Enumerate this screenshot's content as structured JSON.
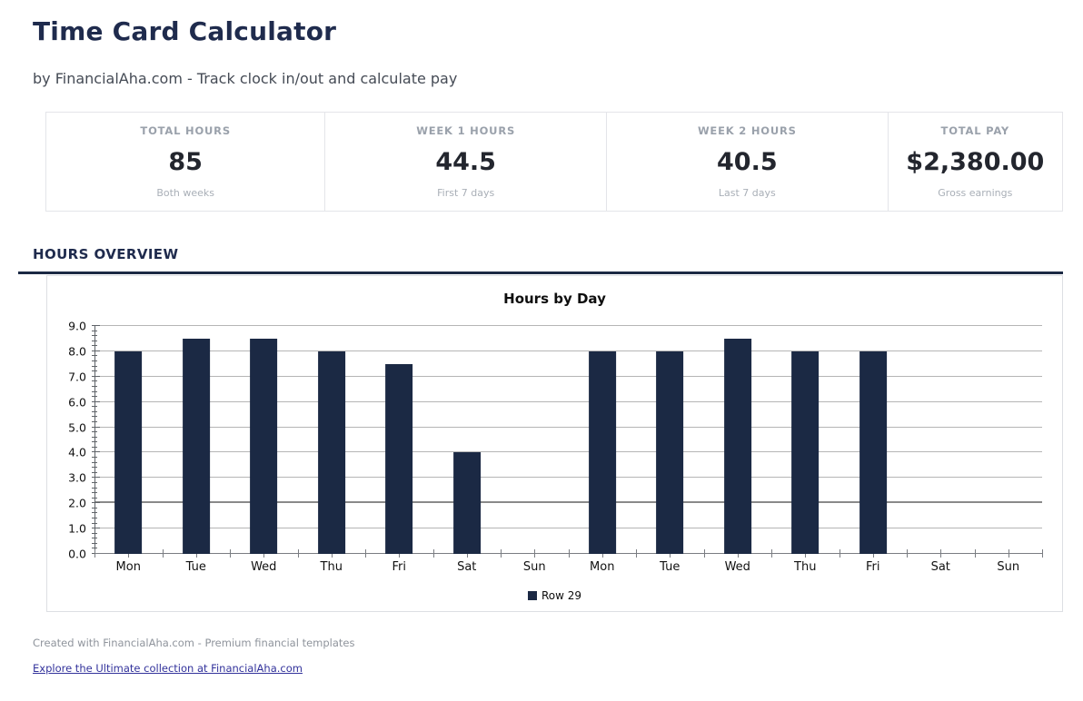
{
  "page": {
    "title": "Time Card Calculator",
    "subtitle": "by FinancialAha.com - Track clock in/out and calculate pay"
  },
  "stats": {
    "cards": [
      {
        "label": "TOTAL HOURS",
        "value": "85",
        "sub": "Both weeks"
      },
      {
        "label": "WEEK 1 HOURS",
        "value": "44.5",
        "sub": "First 7 days"
      },
      {
        "label": "WEEK 2 HOURS",
        "value": "40.5",
        "sub": "Last 7 days"
      },
      {
        "label": "TOTAL PAY",
        "value": "$2,380.00",
        "sub": "Gross earnings"
      }
    ]
  },
  "section": {
    "heading": "HOURS OVERVIEW"
  },
  "chart_data": {
    "type": "bar",
    "title": "Hours by Day",
    "categories": [
      "Mon",
      "Tue",
      "Wed",
      "Thu",
      "Fri",
      "Sat",
      "Sun",
      "Mon",
      "Tue",
      "Wed",
      "Thu",
      "Fri",
      "Sat",
      "Sun"
    ],
    "values": [
      8,
      8.5,
      8.5,
      8,
      7.5,
      4,
      0,
      8,
      8,
      8.5,
      8,
      8,
      0,
      0
    ],
    "xlabel": "",
    "ylabel": "",
    "ylim": [
      0,
      9
    ],
    "ytick_step": 1,
    "ytick_minor_step": 0.2,
    "ytick_labels": [
      "0.0",
      "1.0",
      "2.0",
      "3.0",
      "4.0",
      "5.0",
      "6.0",
      "7.0",
      "8.0",
      "9.0"
    ],
    "emphasis_gridline": 2,
    "grid": true,
    "bar_color": "#1b2944",
    "bar_width_fraction": 0.4,
    "legend_position": "bottom",
    "legend": [
      {
        "label": "Row 29",
        "color": "#1b2944"
      }
    ]
  },
  "footer": {
    "credit": "Created with FinancialAha.com - Premium financial templates",
    "link": "Explore the Ultimate collection at FinancialAha.com"
  },
  "colors": {
    "accent_navy": "#1b2944",
    "title_navy": "#1f2b4d",
    "card_border": "#e4e5e9",
    "gridline": "#b5b5b5",
    "link_blue": "#32329b"
  }
}
